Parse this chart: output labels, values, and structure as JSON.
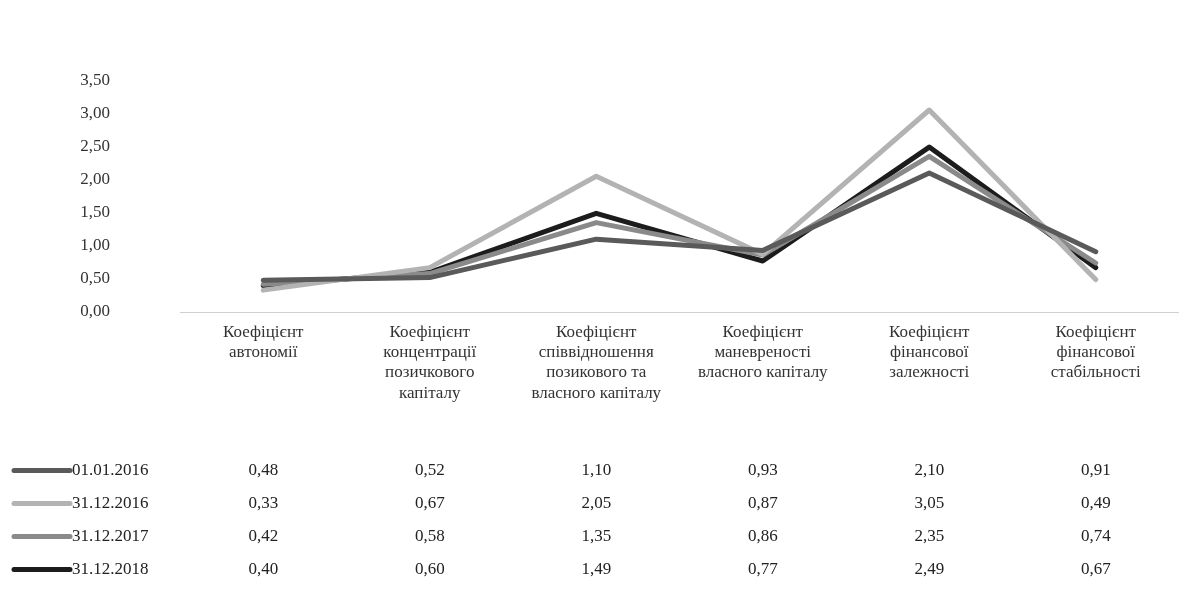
{
  "chart_data": {
    "type": "line",
    "categories": [
      "Коефіцієнт автономії",
      "Коефіцієнт концентрації позичкового капіталу",
      "Коефіцієнт співвідношення позикового та власного капіталу",
      "Коефіцієнт маневреності власного капіталу",
      "Коефіцієнт фінансової залежності",
      "Коефіцієнт фінансової стабільності"
    ],
    "series": [
      {
        "name": "01.01.2016",
        "color": "#5a5a5a",
        "values": [
          0.48,
          0.52,
          1.1,
          0.93,
          2.1,
          0.91
        ],
        "value_labels": [
          "0,48",
          "0,52",
          "1,10",
          "0,93",
          "2,10",
          "0,91"
        ]
      },
      {
        "name": "31.12.2016",
        "color": "#b3b3b3",
        "values": [
          0.33,
          0.67,
          2.05,
          0.87,
          3.05,
          0.49
        ],
        "value_labels": [
          "0,33",
          "0,67",
          "2,05",
          "0,87",
          "3,05",
          "0,49"
        ]
      },
      {
        "name": "31.12.2017",
        "color": "#8a8a8a",
        "values": [
          0.42,
          0.58,
          1.35,
          0.86,
          2.35,
          0.74
        ],
        "value_labels": [
          "0,42",
          "0,58",
          "1,35",
          "0,86",
          "2,35",
          "0,74"
        ]
      },
      {
        "name": "31.12.2018",
        "color": "#1c1c1c",
        "values": [
          0.4,
          0.6,
          1.49,
          0.77,
          2.49,
          0.67
        ],
        "value_labels": [
          "0,40",
          "0,60",
          "1,49",
          "0,77",
          "2,49",
          "0,67"
        ]
      }
    ],
    "ylim": [
      0,
      3.5
    ],
    "yticks": [
      {
        "value": 0,
        "label": "0,00"
      },
      {
        "value": 0.5,
        "label": "0,50"
      },
      {
        "value": 1,
        "label": "1,00"
      },
      {
        "value": 1.5,
        "label": "1,50"
      },
      {
        "value": 2,
        "label": "2,00"
      },
      {
        "value": 2.5,
        "label": "2,50"
      },
      {
        "value": 3,
        "label": "3,00"
      },
      {
        "value": 3.5,
        "label": "3,50"
      }
    ],
    "grid": false,
    "marker": "none",
    "line_style": "solid",
    "legend": "bottom left"
  }
}
